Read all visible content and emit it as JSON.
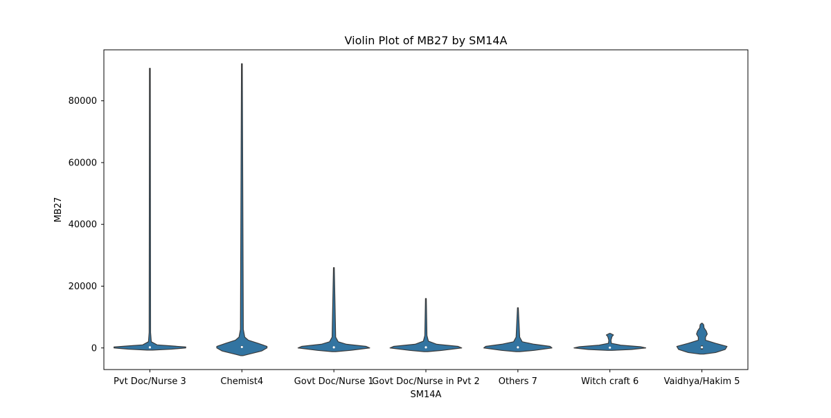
{
  "chart_data": {
    "type": "violin",
    "title": "Violin Plot of MB27 by SM14A",
    "xlabel": "SM14A",
    "ylabel": "MB27",
    "ylim": [
      -7000,
      96500
    ],
    "yticks": [
      0,
      20000,
      40000,
      60000,
      80000
    ],
    "ytick_labels": [
      "0",
      "20000",
      "40000",
      "60000",
      "80000"
    ],
    "grid": false,
    "legend": "none",
    "colors": {
      "violin_fill": "#3274a1",
      "violin_edge": "#3a3a3a",
      "inner_box": "#3a3a3a",
      "axes": "#000000"
    },
    "categories": [
      "Pvt Doc/Nurse 3",
      "Chemist4",
      "Govt Doc/Nurse 1",
      "Govt Doc/Nurse in Pvt 2",
      "Others 7",
      "Witch craft 6",
      "Vaidhya/Hakim 5"
    ],
    "series": [
      {
        "category": "Pvt Doc/Nurse 3",
        "min": -700,
        "q1": 0,
        "median": 200,
        "q3": 400,
        "max": 90500,
        "density_profile": [
          [
            -700,
            0.08
          ],
          [
            -400,
            0.6
          ],
          [
            0,
            1.0
          ],
          [
            300,
            1.0
          ],
          [
            700,
            0.55
          ],
          [
            1000,
            0.2
          ],
          [
            2000,
            0.04
          ],
          [
            5000,
            0.02
          ],
          [
            90500,
            0.01
          ]
        ]
      },
      {
        "category": "Chemist4",
        "min": -2500,
        "q1": 0,
        "median": 300,
        "q3": 700,
        "max": 92000,
        "density_profile": [
          [
            -2500,
            0.03
          ],
          [
            -2000,
            0.2
          ],
          [
            -1000,
            0.55
          ],
          [
            0,
            0.7
          ],
          [
            500,
            0.7
          ],
          [
            1500,
            0.45
          ],
          [
            2500,
            0.18
          ],
          [
            3500,
            0.08
          ],
          [
            6000,
            0.04
          ],
          [
            92000,
            0.01
          ]
        ]
      },
      {
        "category": "Govt Doc/Nurse 1",
        "min": -1200,
        "q1": 0,
        "median": 200,
        "q3": 500,
        "max": 26000,
        "density_profile": [
          [
            -1200,
            0.05
          ],
          [
            -800,
            0.45
          ],
          [
            0,
            1.0
          ],
          [
            500,
            0.9
          ],
          [
            1200,
            0.35
          ],
          [
            2000,
            0.12
          ],
          [
            3500,
            0.05
          ],
          [
            26000,
            0.01
          ]
        ]
      },
      {
        "category": "Govt Doc/Nurse in Pvt 2",
        "min": -1200,
        "q1": 0,
        "median": 200,
        "q3": 500,
        "max": 16000,
        "density_profile": [
          [
            -1200,
            0.05
          ],
          [
            -800,
            0.45
          ],
          [
            0,
            1.0
          ],
          [
            500,
            0.9
          ],
          [
            1200,
            0.3
          ],
          [
            2200,
            0.07
          ],
          [
            4000,
            0.03
          ],
          [
            16000,
            0.01
          ]
        ]
      },
      {
        "category": "Others 7",
        "min": -1200,
        "q1": 0,
        "median": 200,
        "q3": 500,
        "max": 13000,
        "density_profile": [
          [
            -1200,
            0.05
          ],
          [
            -800,
            0.45
          ],
          [
            0,
            0.95
          ],
          [
            500,
            0.9
          ],
          [
            1200,
            0.45
          ],
          [
            2000,
            0.12
          ],
          [
            3500,
            0.05
          ],
          [
            13000,
            0.01
          ]
        ]
      },
      {
        "category": "Witch craft 6",
        "min": -800,
        "q1": 0,
        "median": 100,
        "q3": 300,
        "max": 4700,
        "density_profile": [
          [
            -800,
            0.06
          ],
          [
            -500,
            0.6
          ],
          [
            0,
            1.0
          ],
          [
            400,
            0.85
          ],
          [
            900,
            0.3
          ],
          [
            1500,
            0.04
          ],
          [
            2500,
            0.03
          ],
          [
            3700,
            0.06
          ],
          [
            4200,
            0.1
          ],
          [
            4700,
            0.01
          ]
        ]
      },
      {
        "category": "Vaidhya/Hakim 5",
        "min": -2000,
        "q1": -500,
        "median": 200,
        "q3": 800,
        "max": 8000,
        "density_profile": [
          [
            -2000,
            0.05
          ],
          [
            -1500,
            0.38
          ],
          [
            -500,
            0.65
          ],
          [
            500,
            0.7
          ],
          [
            1500,
            0.38
          ],
          [
            2500,
            0.1
          ],
          [
            3500,
            0.1
          ],
          [
            4500,
            0.15
          ],
          [
            5500,
            0.12
          ],
          [
            6500,
            0.06
          ],
          [
            7500,
            0.05
          ],
          [
            8000,
            0.01
          ]
        ]
      }
    ]
  }
}
